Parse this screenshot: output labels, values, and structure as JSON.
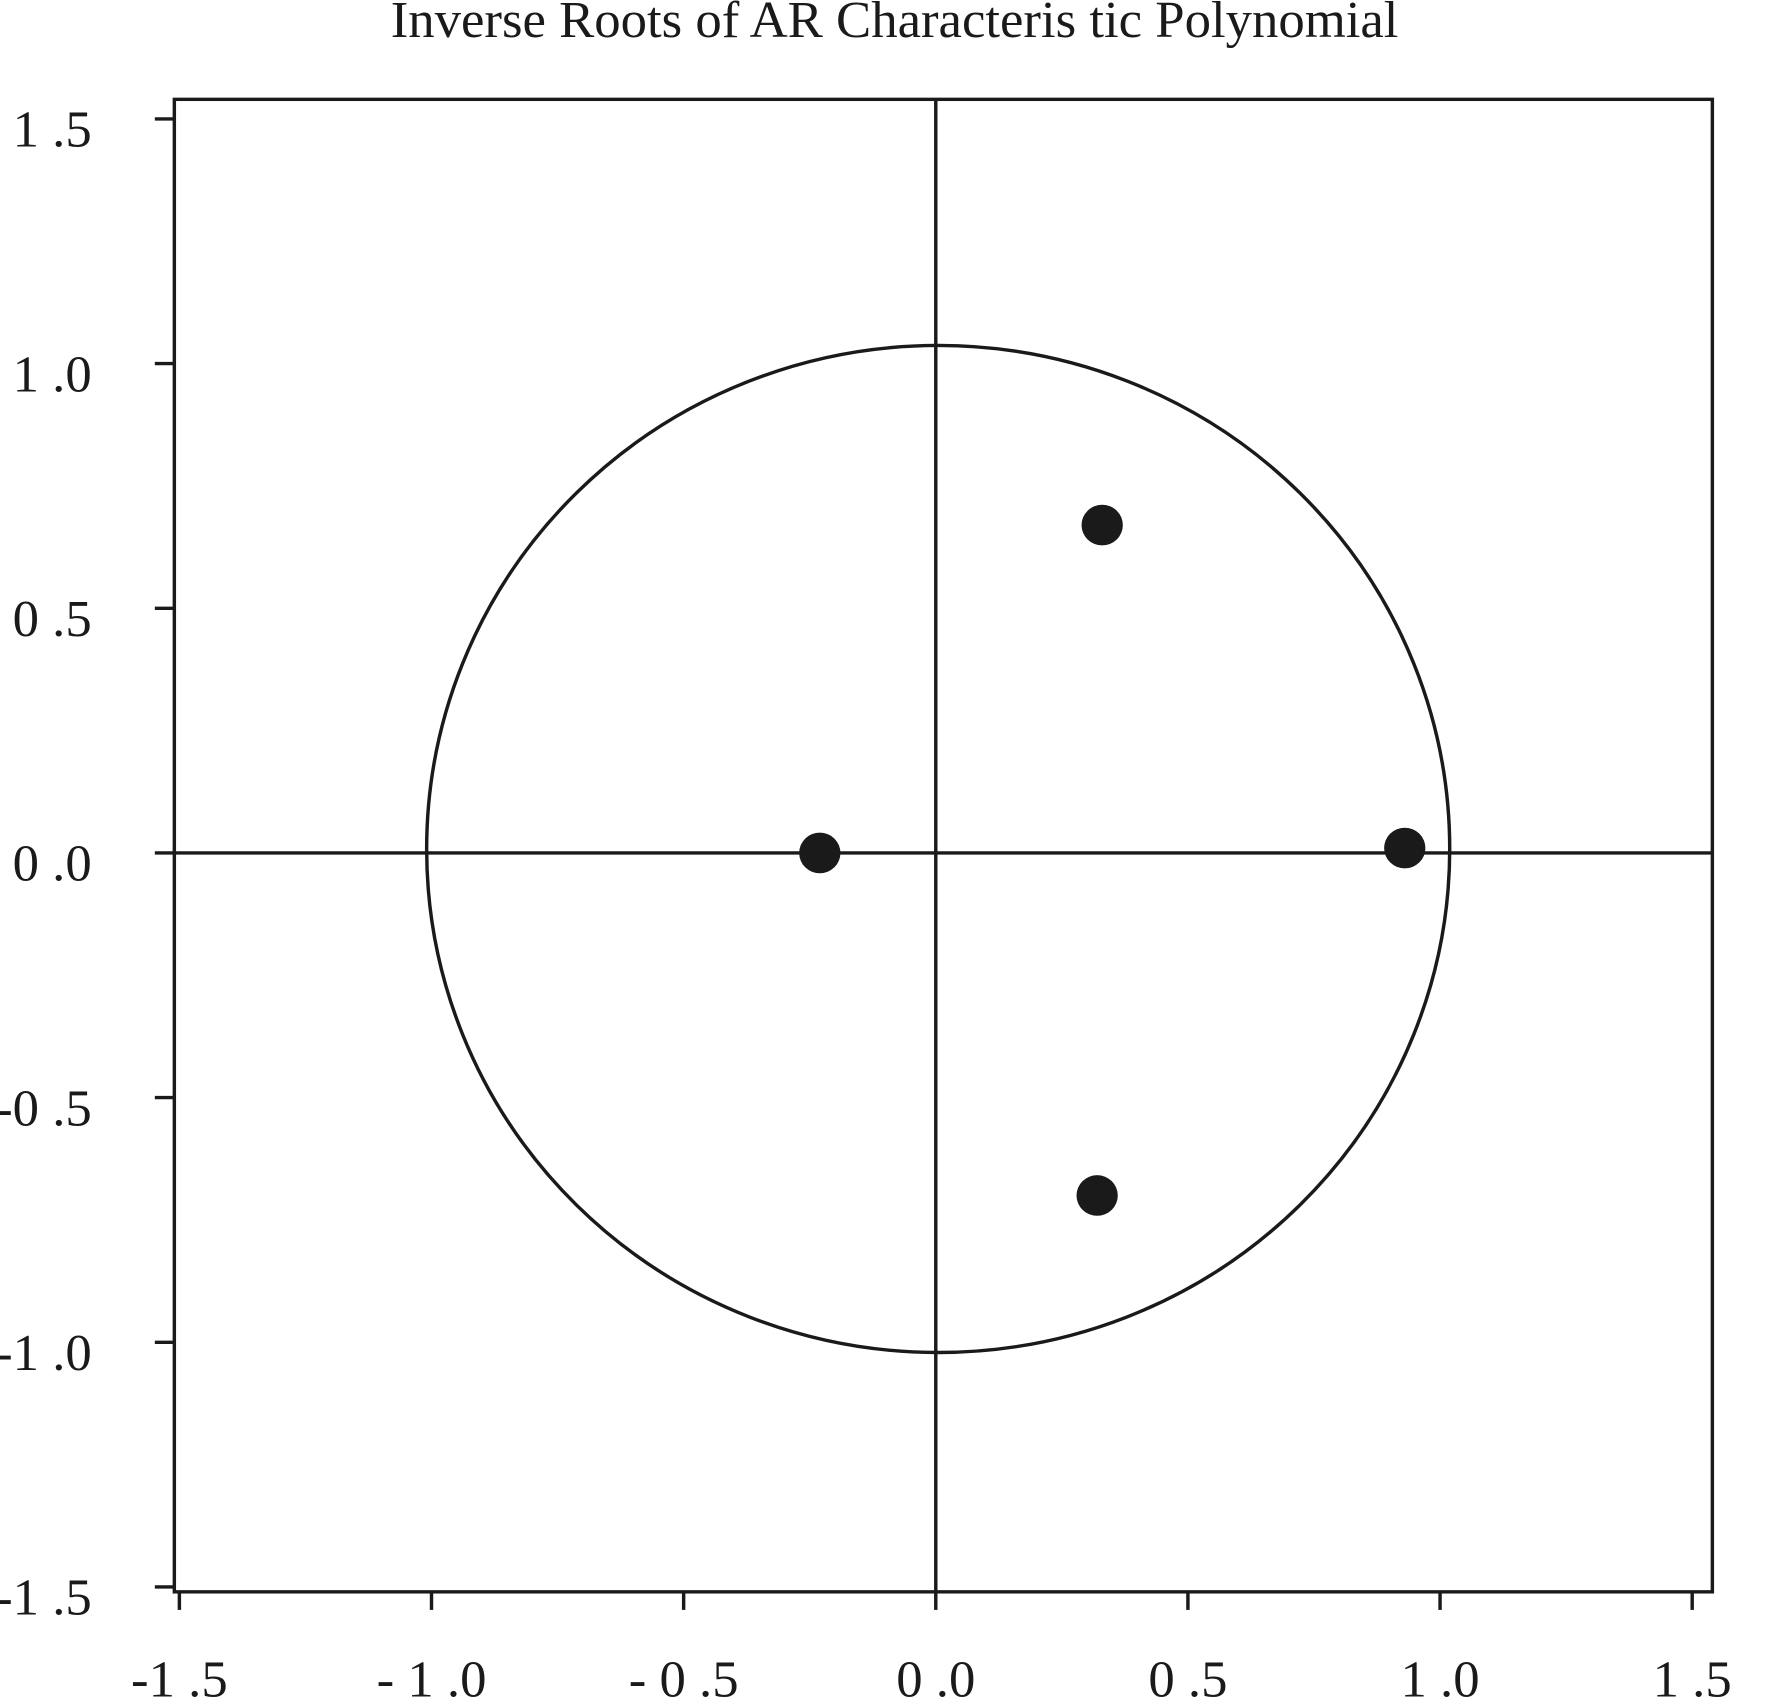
{
  "chart_data": {
    "type": "scatter",
    "title": "Inverse Roots of AR Characteris tic Polynomial",
    "x": [
      -0.23,
      0.93,
      0.33,
      0.32
    ],
    "values": [
      0,
      0.01,
      0.67,
      -0.7
    ],
    "color": "#1a1a1a",
    "xlim": [
      -1.51,
      1.54
    ],
    "ylim": [
      -1.51,
      1.54
    ],
    "xticks": [
      {
        "value": -1.5,
        "label": "-1 .5"
      },
      {
        "value": -1.0,
        "label": "- 1 .0"
      },
      {
        "value": -0.5,
        "label": "- 0 .5"
      },
      {
        "value": 0,
        "label": "0 .0"
      },
      {
        "value": 0.5,
        "label": "0 .5"
      },
      {
        "value": 1.0,
        "label": "1 .0"
      },
      {
        "value": 1.5,
        "label": "1 .5"
      }
    ],
    "yticks": [
      {
        "value": 1.5,
        "label": "1 .5"
      },
      {
        "value": 1.0,
        "label": "1 .0"
      },
      {
        "value": 0.5,
        "label": "0 .5"
      },
      {
        "value": 0,
        "label": "0 .0"
      },
      {
        "value": -0.5,
        "label": "-0 .5"
      },
      {
        "value": -1.0,
        "label": "-1 .0"
      },
      {
        "value": -1.5,
        "label": "-1 .5"
      }
    ]
  }
}
